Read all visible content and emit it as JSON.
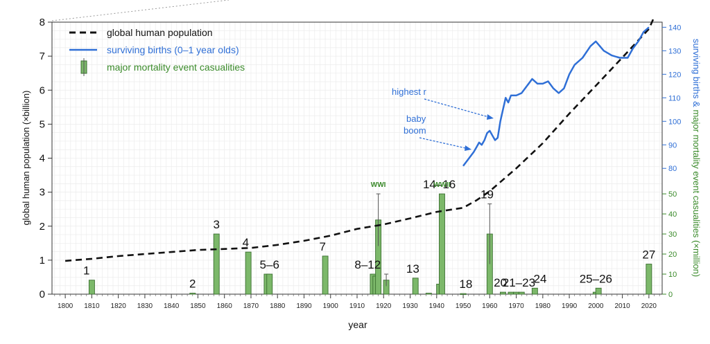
{
  "chart_data": {
    "type": "line",
    "xlabel": "year",
    "ylabel_left": "global human population (×billion)",
    "ylabel_right": "surviving births & major mortality event casualities (×million)",
    "xlim": [
      1795,
      2025
    ],
    "x_ticks": [
      "1800",
      "1810",
      "1820",
      "1830",
      "1840",
      "1850",
      "1860",
      "1870",
      "1880",
      "1890",
      "1900",
      "1910",
      "1920",
      "1930",
      "1940",
      "1950",
      "1960",
      "1970",
      "1980",
      "1990",
      "2000",
      "2010",
      "2020"
    ],
    "ylim_left": [
      0,
      8
    ],
    "y_ticks_left": [
      "0",
      "1",
      "2",
      "3",
      "4",
      "5",
      "6",
      "7",
      "8"
    ],
    "y_ticks_right_births": [
      "80",
      "90",
      "100",
      "110",
      "120",
      "130",
      "140"
    ],
    "y_ticks_right_casualties": [
      "0",
      "10",
      "20",
      "30",
      "40",
      "50"
    ],
    "legend": {
      "population": "global human population",
      "births": "surviving births (0–1 year olds)",
      "casualties": "major mortality event casualities"
    },
    "colors": {
      "population": "#111111",
      "births": "#2f6fd6",
      "casualties": "#7cb86a",
      "casualties_edge": "#3a6e30",
      "casualty_text": "#3a8a2a"
    },
    "series": [
      {
        "name": "global human population",
        "x": [
          1800,
          1810,
          1820,
          1830,
          1840,
          1850,
          1860,
          1870,
          1880,
          1890,
          1900,
          1910,
          1920,
          1930,
          1940,
          1950,
          1955,
          1960,
          1970,
          1980,
          1990,
          2000,
          2010,
          2020,
          2022
        ],
        "values": [
          0.98,
          1.04,
          1.12,
          1.18,
          1.24,
          1.3,
          1.33,
          1.36,
          1.45,
          1.57,
          1.72,
          1.92,
          2.05,
          2.23,
          2.42,
          2.54,
          2.76,
          3.03,
          3.7,
          4.44,
          5.31,
          6.13,
          6.96,
          7.8,
          8.15
        ]
      },
      {
        "name": "surviving births (0–1 year olds)",
        "axis": "right-births",
        "x": [
          1950,
          1952,
          1954,
          1955,
          1956,
          1957,
          1958,
          1959,
          1960,
          1961,
          1962,
          1963,
          1964,
          1965,
          1966,
          1967,
          1968,
          1970,
          1972,
          1974,
          1976,
          1978,
          1980,
          1982,
          1984,
          1986,
          1988,
          1990,
          1992,
          1995,
          1998,
          2000,
          2003,
          2006,
          2009,
          2012,
          2014,
          2016,
          2018,
          2020
        ],
        "values": [
          81,
          84,
          87,
          89,
          91,
          90,
          92,
          95,
          96,
          94,
          92,
          93,
          100,
          105,
          110,
          108,
          111,
          111,
          112,
          115,
          118,
          116,
          116,
          117,
          114,
          112,
          114,
          120,
          124,
          127,
          132,
          134,
          130,
          128,
          127,
          127,
          131,
          134,
          138,
          140
        ]
      },
      {
        "name": "major mortality event casualities",
        "axis": "right-casualties",
        "bars": [
          {
            "x": 1810,
            "value": 7
          },
          {
            "x": 1848,
            "value": 0.5
          },
          {
            "x": 1857,
            "value": 30
          },
          {
            "x": 1869,
            "value": 21
          },
          {
            "x": 1876,
            "value": 10
          },
          {
            "x": 1877,
            "value": 10
          },
          {
            "x": 1898,
            "value": 19
          },
          {
            "x": 1916,
            "value": 10
          },
          {
            "x": 1917,
            "value": 9
          },
          {
            "x": 1918,
            "value": 37,
            "err": 13
          },
          {
            "x": 1921,
            "value": 7,
            "err": 3
          },
          {
            "x": 1932,
            "value": 8
          },
          {
            "x": 1937,
            "value": 0.5
          },
          {
            "x": 1941,
            "value": 5
          },
          {
            "x": 1942,
            "value": 50
          },
          {
            "x": 1950,
            "value": 0.3
          },
          {
            "x": 1960,
            "value": 30,
            "err": 15
          },
          {
            "x": 1965,
            "value": 1
          },
          {
            "x": 1968,
            "value": 1
          },
          {
            "x": 1970,
            "value": 1
          },
          {
            "x": 1972,
            "value": 1
          },
          {
            "x": 1977,
            "value": 3
          },
          {
            "x": 2000,
            "value": 1
          },
          {
            "x": 2001,
            "value": 3
          },
          {
            "x": 2020,
            "value": 15
          }
        ]
      }
    ],
    "event_labels": [
      {
        "text": "1",
        "x": 1808
      },
      {
        "text": "2",
        "x": 1848
      },
      {
        "text": "3",
        "x": 1857
      },
      {
        "text": "4",
        "x": 1868
      },
      {
        "text": "5–6",
        "x": 1877
      },
      {
        "text": "7",
        "x": 1897
      },
      {
        "text": "8–12",
        "x": 1914
      },
      {
        "text": "13",
        "x": 1931
      },
      {
        "text": "14–16",
        "x": 1941
      },
      {
        "text": "18",
        "x": 1951
      },
      {
        "text": "19",
        "x": 1959
      },
      {
        "text": "20",
        "x": 1964
      },
      {
        "text": "21–23",
        "x": 1971
      },
      {
        "text": "24",
        "x": 1979
      },
      {
        "text": "25–26",
        "x": 2000
      },
      {
        "text": "27",
        "x": 2020
      }
    ],
    "war_labels": [
      {
        "text": "WWI",
        "x": 1918
      },
      {
        "text": "WWII",
        "x": 1942
      }
    ],
    "annotations": [
      {
        "text": "highest r"
      },
      {
        "text": "baby"
      },
      {
        "text": "boom"
      }
    ]
  }
}
